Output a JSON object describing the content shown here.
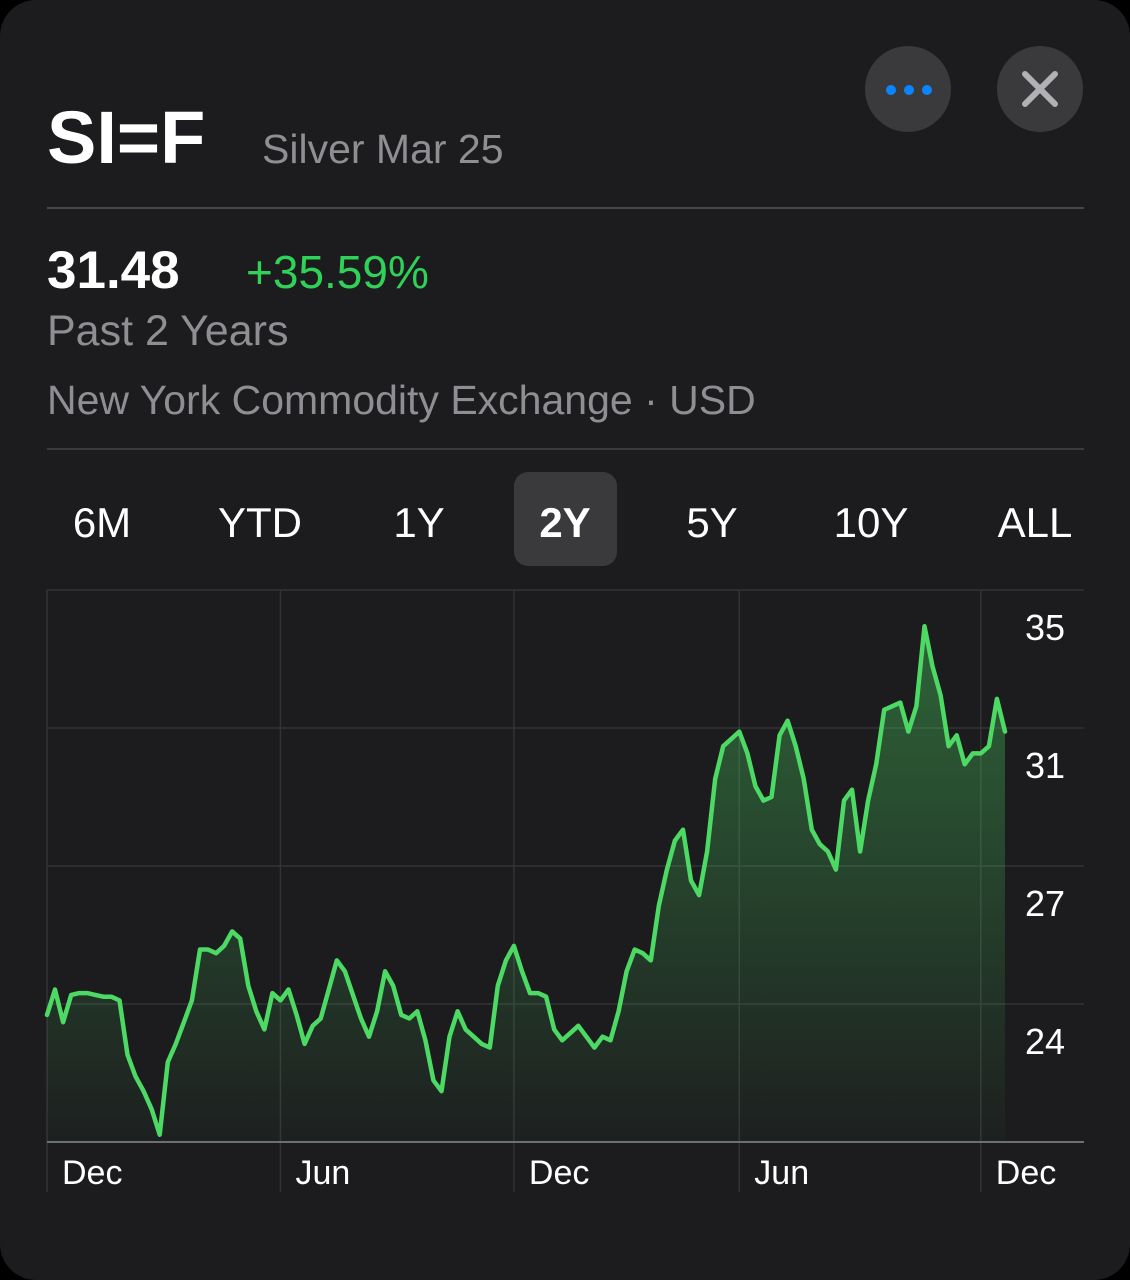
{
  "header": {
    "symbol": "SI=F",
    "name": "Silver Mar 25",
    "price": "31.48",
    "change": "+35.59%",
    "period": "Past 2 Years",
    "exchange": "New York Commodity Exchange · USD"
  },
  "ranges": [
    {
      "label": "6M"
    },
    {
      "label": "YTD"
    },
    {
      "label": "1Y"
    },
    {
      "label": "2Y",
      "selected": true
    },
    {
      "label": "5Y"
    },
    {
      "label": "10Y"
    },
    {
      "label": "ALL"
    }
  ],
  "chart_data": {
    "type": "line",
    "color": "#4cd964",
    "categories": [
      "Dec",
      null,
      null,
      null,
      null,
      null,
      null,
      null,
      null,
      null,
      null,
      null,
      null,
      null,
      null,
      null,
      null,
      null,
      null,
      null,
      null,
      null,
      null,
      null,
      null,
      null,
      null,
      null,
      null,
      "Jun",
      null,
      null,
      null,
      null,
      null,
      null,
      null,
      null,
      null,
      null,
      null,
      null,
      null,
      null,
      null,
      null,
      null,
      null,
      null,
      null,
      null,
      null,
      null,
      null,
      null,
      null,
      null,
      null,
      "Dec",
      null,
      null,
      null,
      null,
      null,
      null,
      null,
      null,
      null,
      null,
      null,
      null,
      null,
      null,
      null,
      null,
      null,
      null,
      null,
      null,
      null,
      null,
      null,
      null,
      null,
      null,
      null,
      "Jun",
      null,
      null,
      null,
      null,
      null,
      null,
      null,
      null,
      null,
      null,
      null,
      null,
      null,
      null,
      null,
      null,
      null,
      null,
      null,
      null,
      null,
      null,
      null,
      null,
      null,
      null,
      null,
      null,
      null,
      "Dec",
      null,
      null,
      null
    ],
    "values": [
      23.2,
      23.9,
      23.0,
      23.75,
      23.8,
      23.8,
      23.75,
      23.7,
      23.7,
      23.6,
      22.1,
      21.5,
      21.1,
      20.6,
      19.9,
      21.9,
      22.4,
      23.0,
      23.6,
      25.0,
      25.0,
      24.9,
      25.1,
      25.5,
      25.3,
      24.0,
      23.3,
      22.8,
      23.8,
      23.6,
      23.9,
      23.2,
      22.4,
      22.9,
      23.1,
      23.9,
      24.7,
      24.4,
      23.75,
      23.1,
      22.6,
      23.3,
      24.4,
      24.0,
      23.2,
      23.1,
      23.3,
      22.5,
      21.4,
      21.1,
      22.6,
      23.3,
      22.8,
      22.6,
      22.4,
      22.3,
      24.0,
      24.7,
      25.1,
      24.4,
      23.8,
      23.8,
      23.7,
      22.8,
      22.5,
      22.7,
      22.9,
      22.6,
      22.3,
      22.6,
      22.5,
      23.3,
      24.4,
      25.0,
      24.9,
      24.7,
      26.2,
      27.2,
      28.0,
      28.3,
      26.9,
      26.5,
      27.7,
      29.7,
      30.6,
      30.8,
      31.0,
      30.4,
      29.5,
      29.1,
      29.2,
      30.9,
      31.3,
      30.6,
      29.7,
      28.3,
      27.9,
      27.7,
      27.2,
      29.1,
      29.4,
      27.7,
      29.1,
      30.1,
      31.6,
      31.7,
      31.8,
      31.0,
      31.7,
      33.9,
      32.8,
      32.0,
      30.6,
      30.9,
      30.1,
      30.4,
      30.4,
      30.6,
      31.9,
      31.0
    ],
    "ylim": [
      19.7,
      34.9
    ],
    "yticks": [
      {
        "value": 34.9,
        "label": "35"
      },
      {
        "value": 31.1,
        "label": "31"
      },
      {
        "value": 27.3,
        "label": "27"
      },
      {
        "value": 23.5,
        "label": "24"
      }
    ],
    "grid": true
  }
}
